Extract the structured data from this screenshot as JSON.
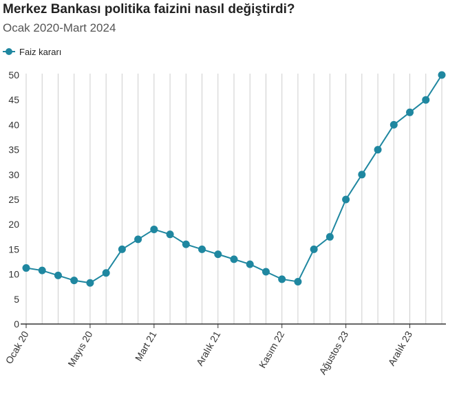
{
  "chart_data": {
    "type": "line",
    "title": "Merkez Bankası politika faizini nasıl değiştirdi?",
    "subtitle": "Ocak 2020-Mart 2024",
    "categories": [
      "Ocak 20",
      null,
      null,
      null,
      "Mayıs 20",
      null,
      null,
      null,
      "Mart 21",
      null,
      null,
      null,
      "Aralık 21",
      null,
      null,
      null,
      "Kasım 22",
      null,
      null,
      null,
      "Ağustos 23",
      null,
      null,
      null,
      "Aralık 23",
      null,
      null
    ],
    "series": [
      {
        "name": "Faiz kararı",
        "color": "#1f87a0",
        "values": [
          11.25,
          10.75,
          9.75,
          8.75,
          8.25,
          10.25,
          15,
          17,
          19,
          18,
          16,
          15,
          14,
          13,
          12,
          10.5,
          9,
          8.5,
          15,
          17.5,
          25,
          30,
          35,
          40,
          42.5,
          45,
          50
        ]
      }
    ],
    "ylim": [
      0,
      50
    ],
    "yticks": [
      0,
      5,
      10,
      15,
      20,
      25,
      30,
      35,
      40,
      45,
      50
    ],
    "grid": true,
    "legend": "top-left"
  }
}
